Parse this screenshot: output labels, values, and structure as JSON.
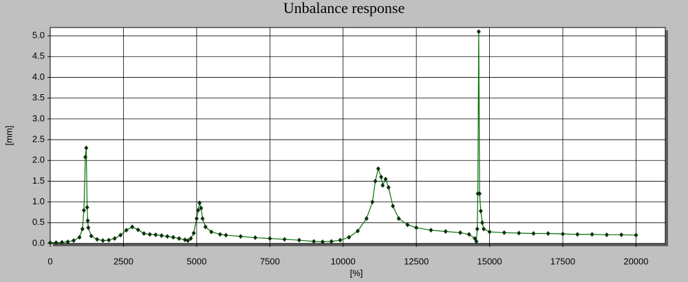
{
  "chart_data": {
    "type": "line",
    "title": "Unbalance response",
    "x_label": "[%]",
    "y_label": "[mm]",
    "xlim": [
      0,
      21000
    ],
    "ylim": [
      0,
      5.2
    ],
    "xticks": [
      0,
      2500,
      5000,
      7500,
      10000,
      12500,
      15000,
      17500,
      20000
    ],
    "yticks": [
      {
        "value": 0,
        "label": "0.0"
      },
      0.5,
      {
        "value": 1,
        "label": "1.0"
      },
      1.5,
      {
        "value": 2,
        "label": "2.0"
      },
      2.5,
      {
        "value": 3,
        "label": "3.0"
      },
      3.5,
      {
        "value": 4,
        "label": "4.0"
      },
      4.5,
      {
        "value": 5,
        "label": "5.0"
      }
    ],
    "grid": true,
    "series": [
      {
        "color": "#007000",
        "marker_color": "#0b2e0b",
        "x": [
          0,
          200,
          400,
          600,
          800,
          1000,
          1100,
          1150,
          1200,
          1230,
          1260,
          1280,
          1300,
          1400,
          1600,
          1800,
          2000,
          2200,
          2400,
          2600,
          2800,
          3000,
          3200,
          3400,
          3600,
          3800,
          4000,
          4200,
          4400,
          4600,
          4700,
          4800,
          4900,
          5000,
          5050,
          5100,
          5150,
          5200,
          5300,
          5500,
          5800,
          6000,
          6500,
          7000,
          7500,
          8000,
          8500,
          9000,
          9300,
          9600,
          9900,
          10200,
          10500,
          10800,
          11000,
          11100,
          11200,
          11300,
          11350,
          11450,
          11550,
          11700,
          11900,
          12200,
          12500,
          13000,
          13500,
          14000,
          14300,
          14500,
          14550,
          14580,
          14600,
          14630,
          14660,
          14700,
          14750,
          14800,
          15000,
          15500,
          16000,
          16500,
          17000,
          17500,
          18000,
          18500,
          19000,
          19500,
          20000
        ],
        "values": [
          0.02,
          0.02,
          0.03,
          0.04,
          0.07,
          0.15,
          0.35,
          0.8,
          2.08,
          2.3,
          0.87,
          0.55,
          0.38,
          0.18,
          0.1,
          0.07,
          0.08,
          0.12,
          0.2,
          0.32,
          0.4,
          0.33,
          0.24,
          0.22,
          0.21,
          0.19,
          0.17,
          0.15,
          0.12,
          0.09,
          0.07,
          0.12,
          0.25,
          0.6,
          0.8,
          0.98,
          0.85,
          0.6,
          0.4,
          0.28,
          0.22,
          0.2,
          0.17,
          0.14,
          0.12,
          0.1,
          0.08,
          0.05,
          0.04,
          0.05,
          0.08,
          0.15,
          0.3,
          0.6,
          1.0,
          1.5,
          1.8,
          1.6,
          1.4,
          1.55,
          1.35,
          0.9,
          0.6,
          0.45,
          0.38,
          0.32,
          0.29,
          0.26,
          0.22,
          0.12,
          0.05,
          0.35,
          1.2,
          5.1,
          1.2,
          0.78,
          0.5,
          0.35,
          0.28,
          0.26,
          0.25,
          0.24,
          0.24,
          0.23,
          0.22,
          0.22,
          0.21,
          0.21,
          0.2
        ]
      }
    ]
  }
}
